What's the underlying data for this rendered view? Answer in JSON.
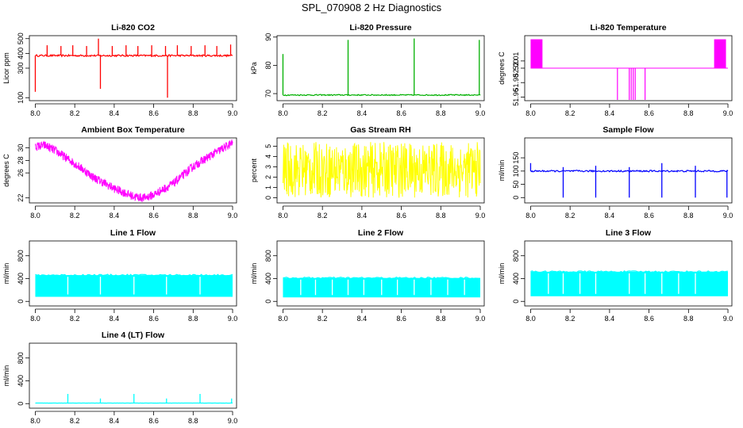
{
  "figure": {
    "title": "SPL_070908  2 Hz Diagnostics"
  },
  "chart_data": [
    {
      "id": "co2",
      "type": "line",
      "title": "Li-820 CO2",
      "ylabel": "Licor ppm",
      "color": "#ff0000",
      "xlim": [
        7.97,
        9.02
      ],
      "ylim": [
        80,
        520
      ],
      "xticks": [
        8.0,
        8.2,
        8.4,
        8.6,
        8.8,
        9.0
      ],
      "xtick_labels": [
        "8.0",
        "8.2",
        "8.4",
        "8.6",
        "8.8",
        "9.0"
      ],
      "yticks": [
        100,
        300,
        400,
        500
      ],
      "ytick_labels": [
        "100",
        "300",
        "400",
        "500"
      ],
      "pattern": "baseline_spikes",
      "baseline": 385,
      "noise": 6,
      "spikes": [
        [
          8.0,
          140
        ],
        [
          8.06,
          455
        ],
        [
          8.13,
          450
        ],
        [
          8.19,
          455
        ],
        [
          8.26,
          450
        ],
        [
          8.32,
          500
        ],
        [
          8.33,
          160
        ],
        [
          8.39,
          450
        ],
        [
          8.46,
          455
        ],
        [
          8.52,
          450
        ],
        [
          8.59,
          455
        ],
        [
          8.66,
          450
        ],
        [
          8.67,
          100
        ],
        [
          8.72,
          455
        ],
        [
          8.79,
          450
        ],
        [
          8.86,
          455
        ],
        [
          8.92,
          450
        ],
        [
          8.99,
          460
        ]
      ]
    },
    {
      "id": "pressure",
      "type": "line",
      "title": "Li-820 Pressure",
      "ylabel": "kPa",
      "color": "#00b000",
      "xlim": [
        7.97,
        9.02
      ],
      "ylim": [
        67.5,
        90.5
      ],
      "xticks": [
        8.0,
        8.2,
        8.4,
        8.6,
        8.8,
        9.0
      ],
      "xtick_labels": [
        "8.0",
        "8.2",
        "8.4",
        "8.6",
        "8.8",
        "9.0"
      ],
      "yticks": [
        70,
        80,
        90
      ],
      "ytick_labels": [
        "70",
        "80",
        "90"
      ],
      "pattern": "baseline_spikes",
      "baseline": 69.5,
      "noise": 0.2,
      "spikes": [
        [
          8.0,
          84
        ],
        [
          8.33,
          89
        ],
        [
          8.665,
          89.5
        ],
        [
          8.995,
          89
        ]
      ]
    },
    {
      "id": "licor-temp",
      "type": "line",
      "title": "Li-820 Temperature",
      "ylabel": "degrees C",
      "color": "#ff00ff",
      "xlim": [
        7.97,
        9.02
      ],
      "ylim": [
        51.955,
        52.045
      ],
      "xticks": [
        8.0,
        8.2,
        8.4,
        8.6,
        8.8,
        9.0
      ],
      "xtick_labels": [
        "8.0",
        "8.2",
        "8.4",
        "8.6",
        "8.8",
        "9.0"
      ],
      "yticks": [
        51.96,
        51.98,
        52.0,
        52.01
      ],
      "ytick_labels": [
        "51.96",
        "51.98",
        "52.00",
        "52.01"
      ],
      "pattern": "step_bands",
      "baseline": 52.0,
      "bands": [
        [
          8.0,
          8.06,
          52.0,
          52.04
        ],
        [
          8.93,
          8.99,
          52.0,
          52.04
        ]
      ],
      "dips": [
        [
          8.44,
          51.955
        ],
        [
          8.5,
          51.955
        ],
        [
          8.51,
          51.955
        ],
        [
          8.52,
          51.955
        ],
        [
          8.53,
          51.955
        ],
        [
          8.58,
          51.955
        ]
      ]
    },
    {
      "id": "ambient-temp",
      "type": "line",
      "title": "Ambient Box Temperature",
      "ylabel": "degrees C",
      "color": "#ff00ff",
      "xlim": [
        7.97,
        9.02
      ],
      "ylim": [
        21.2,
        31.6
      ],
      "xticks": [
        8.0,
        8.2,
        8.4,
        8.6,
        8.8,
        9.0
      ],
      "xtick_labels": [
        "8.0",
        "8.2",
        "8.4",
        "8.6",
        "8.8",
        "9.0"
      ],
      "yticks": [
        22,
        26,
        28,
        30
      ],
      "ytick_labels": [
        "22",
        "26",
        "28",
        "30"
      ],
      "pattern": "noisy_curve",
      "noise": 0.7,
      "curve": [
        [
          8.0,
          30.2
        ],
        [
          8.05,
          30.4
        ],
        [
          8.1,
          29.6
        ],
        [
          8.2,
          27.5
        ],
        [
          8.3,
          25.2
        ],
        [
          8.4,
          23.5
        ],
        [
          8.5,
          22.2
        ],
        [
          8.55,
          22.0
        ],
        [
          8.6,
          22.5
        ],
        [
          8.7,
          24.3
        ],
        [
          8.8,
          27.0
        ],
        [
          8.9,
          29.0
        ],
        [
          9.0,
          30.8
        ]
      ]
    },
    {
      "id": "rh",
      "type": "line",
      "title": "Gas Stream RH",
      "ylabel": "percent",
      "color": "#ffff00",
      "xlim": [
        7.97,
        9.02
      ],
      "ylim": [
        -0.5,
        5.8
      ],
      "xticks": [
        8.0,
        8.2,
        8.4,
        8.6,
        8.8,
        9.0
      ],
      "xtick_labels": [
        "8.0",
        "8.2",
        "8.4",
        "8.6",
        "8.8",
        "9.0"
      ],
      "yticks": [
        0,
        1,
        2,
        3,
        4,
        5
      ],
      "ytick_labels": [
        "0",
        "1",
        "2",
        "3",
        "4",
        "5"
      ],
      "pattern": "random_band",
      "low": 0.0,
      "high": 5.4
    },
    {
      "id": "sample-flow",
      "type": "line",
      "title": "Sample Flow",
      "ylabel": "ml/min",
      "color": "#0000ff",
      "xlim": [
        7.97,
        9.02
      ],
      "ylim": [
        -20,
        225
      ],
      "xticks": [
        8.0,
        8.2,
        8.4,
        8.6,
        8.8,
        9.0
      ],
      "xtick_labels": [
        "8.0",
        "8.2",
        "8.4",
        "8.6",
        "8.8",
        "9.0"
      ],
      "yticks": [
        0,
        50,
        100,
        150
      ],
      "ytick_labels": [
        "0",
        "50",
        "100",
        "150"
      ],
      "pattern": "baseline_spikes",
      "baseline": 100,
      "noise": 3,
      "spikes": [
        [
          8.0,
          130
        ],
        [
          8.165,
          0
        ],
        [
          8.165,
          115
        ],
        [
          8.33,
          0
        ],
        [
          8.33,
          120
        ],
        [
          8.5,
          0
        ],
        [
          8.5,
          115
        ],
        [
          8.665,
          0
        ],
        [
          8.665,
          130
        ],
        [
          8.835,
          0
        ],
        [
          8.835,
          120
        ],
        [
          8.995,
          0
        ]
      ]
    },
    {
      "id": "line1",
      "type": "line",
      "title": "Line 1 Flow",
      "ylabel": "ml/min",
      "color": "#00ffff",
      "xlim": [
        7.97,
        9.02
      ],
      "ylim": [
        -80,
        1060
      ],
      "xticks": [
        8.0,
        8.2,
        8.4,
        8.6,
        8.8,
        9.0
      ],
      "xtick_labels": [
        "8.0",
        "8.2",
        "8.4",
        "8.6",
        "8.8",
        "9.0"
      ],
      "yticks": [
        0,
        400,
        800
      ],
      "ytick_labels": [
        "0",
        "400",
        "800"
      ],
      "pattern": "filled_band",
      "low": 80,
      "high": 460,
      "gaps": [
        8.165,
        8.33,
        8.5,
        8.665,
        8.835
      ]
    },
    {
      "id": "line2",
      "type": "line",
      "title": "Line 2 Flow",
      "ylabel": "ml/min",
      "color": "#00ffff",
      "xlim": [
        7.97,
        9.02
      ],
      "ylim": [
        -80,
        1060
      ],
      "xticks": [
        8.0,
        8.2,
        8.4,
        8.6,
        8.8,
        9.0
      ],
      "xtick_labels": [
        "8.0",
        "8.2",
        "8.4",
        "8.6",
        "8.8",
        "9.0"
      ],
      "yticks": [
        0,
        400,
        800
      ],
      "ytick_labels": [
        "0",
        "400",
        "800"
      ],
      "pattern": "filled_band",
      "low": 70,
      "high": 410,
      "gaps": [
        8.09,
        8.165,
        8.25,
        8.33,
        8.41,
        8.5,
        8.58,
        8.665,
        8.75,
        8.835,
        8.92
      ]
    },
    {
      "id": "line3",
      "type": "line",
      "title": "Line 3 Flow",
      "ylabel": "ml/min",
      "color": "#00ffff",
      "xlim": [
        7.97,
        9.02
      ],
      "ylim": [
        -80,
        1060
      ],
      "xticks": [
        8.0,
        8.2,
        8.4,
        8.6,
        8.8,
        9.0
      ],
      "xtick_labels": [
        "8.0",
        "8.2",
        "8.4",
        "8.6",
        "8.8",
        "9.0"
      ],
      "yticks": [
        0,
        400,
        800
      ],
      "ytick_labels": [
        "0",
        "400",
        "800"
      ],
      "pattern": "filled_band",
      "low": 90,
      "high": 520,
      "gaps": [
        8.09,
        8.165,
        8.25,
        8.33,
        8.5,
        8.58,
        8.665,
        8.75,
        8.835
      ]
    },
    {
      "id": "line4",
      "type": "line",
      "title": "Line 4 (LT) Flow",
      "ylabel": "ml/min",
      "color": "#00ffff",
      "xlim": [
        7.97,
        9.02
      ],
      "ylim": [
        -80,
        1060
      ],
      "xticks": [
        8.0,
        8.2,
        8.4,
        8.6,
        8.8,
        9.0
      ],
      "xtick_labels": [
        "8.0",
        "8.2",
        "8.4",
        "8.6",
        "8.8",
        "9.0"
      ],
      "yticks": [
        0,
        400,
        800
      ],
      "ytick_labels": [
        "0",
        "400",
        "800"
      ],
      "pattern": "baseline_spikes",
      "baseline": 10,
      "noise": 1,
      "spikes": [
        [
          8.165,
          170
        ],
        [
          8.33,
          90
        ],
        [
          8.5,
          170
        ],
        [
          8.665,
          90
        ],
        [
          8.835,
          170
        ],
        [
          8.995,
          90
        ]
      ]
    }
  ]
}
